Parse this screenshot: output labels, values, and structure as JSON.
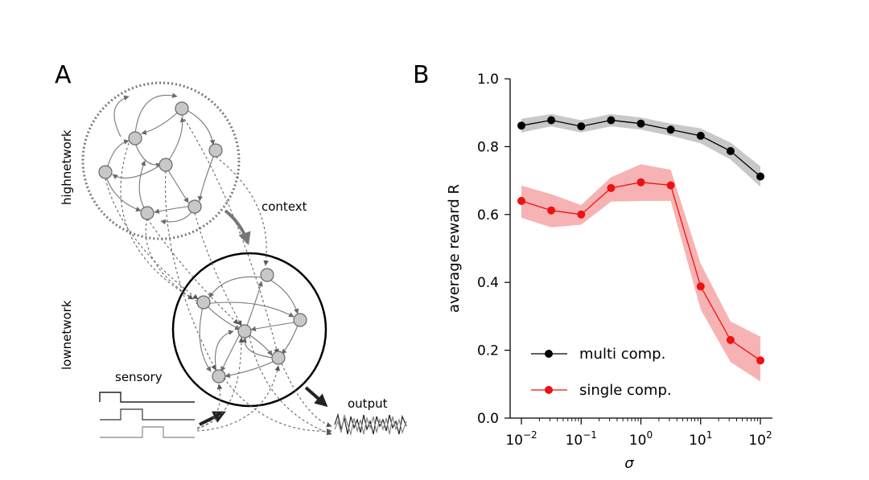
{
  "panel_a": {
    "letter": "A",
    "high_network_label": "highnetwork",
    "low_network_label": "lownetwork",
    "context_label": "context",
    "sensory_label": "sensory",
    "output_label": "output"
  },
  "panel_b": {
    "letter": "B"
  },
  "chart_data": {
    "type": "line",
    "x_scale": "log",
    "x": [
      0.01,
      0.0316,
      0.1,
      0.316,
      1,
      3.16,
      10,
      31.6,
      100
    ],
    "xtick_values": [
      0.01,
      0.1,
      1,
      10,
      100
    ],
    "xtick_bases": [
      "10",
      "10",
      "10",
      "10",
      "10"
    ],
    "xtick_exponents": [
      "−2",
      "−1",
      "0",
      "1",
      "2"
    ],
    "xlabel": "σ",
    "ylabel": "average reward R",
    "ylim": [
      0.0,
      1.0
    ],
    "yticks": [
      "0.0",
      "0.2",
      "0.4",
      "0.6",
      "0.8",
      "1.0"
    ],
    "ytick_values": [
      0.0,
      0.2,
      0.4,
      0.6,
      0.8,
      1.0
    ],
    "grid": false,
    "legend_position": "bottom-left",
    "series": [
      {
        "name": "multi comp.",
        "color": "#000000",
        "band_color": "#c8c8c8",
        "values": [
          0.862,
          0.878,
          0.86,
          0.878,
          0.868,
          0.85,
          0.832,
          0.787,
          0.712
        ],
        "lower": [
          0.842,
          0.86,
          0.842,
          0.86,
          0.85,
          0.832,
          0.81,
          0.762,
          0.682
        ],
        "upper": [
          0.882,
          0.896,
          0.878,
          0.896,
          0.886,
          0.868,
          0.854,
          0.812,
          0.742
        ]
      },
      {
        "name": "single comp.",
        "color": "#ee1111",
        "band_color": "#f7b3b3",
        "values": [
          0.64,
          0.612,
          0.6,
          0.678,
          0.695,
          0.686,
          0.388,
          0.23,
          0.17
        ],
        "lower": [
          0.59,
          0.562,
          0.57,
          0.638,
          0.64,
          0.64,
          0.32,
          0.165,
          0.108
        ],
        "upper": [
          0.685,
          0.66,
          0.628,
          0.71,
          0.748,
          0.732,
          0.455,
          0.285,
          0.24
        ]
      }
    ]
  }
}
